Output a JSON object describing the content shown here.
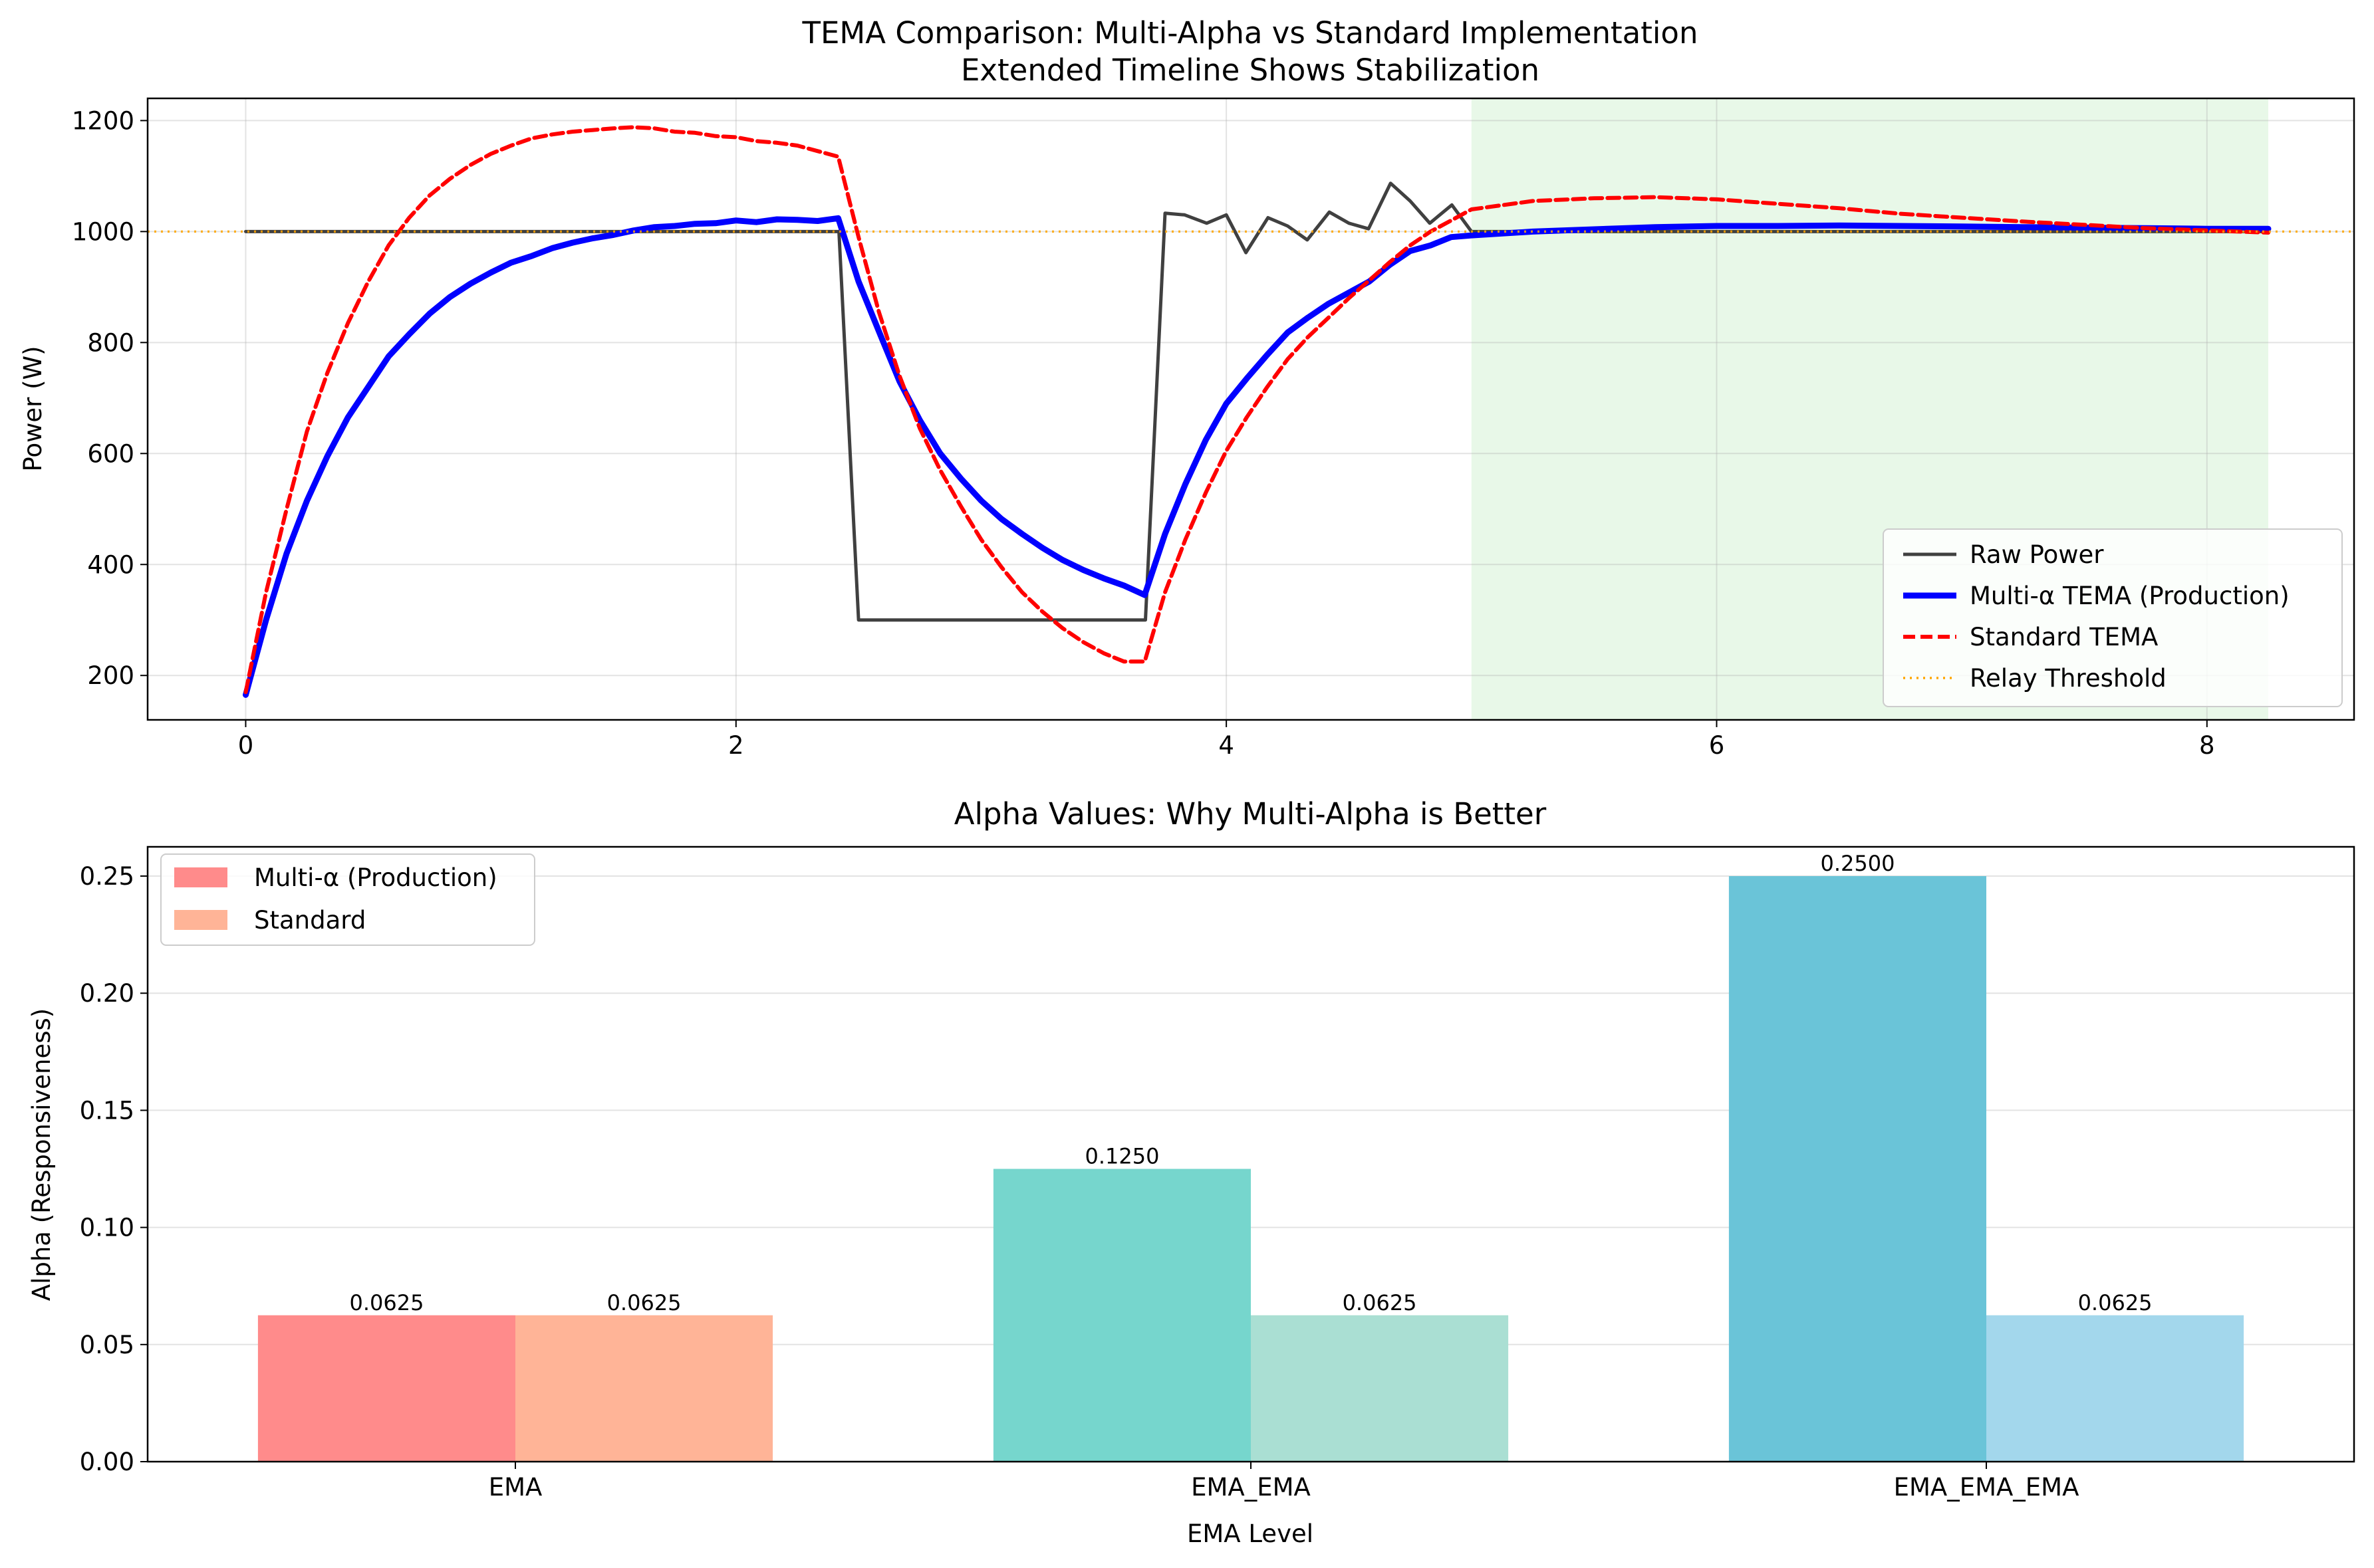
{
  "chart_data": [
    {
      "type": "line",
      "title": "TEMA Comparison: Multi-Alpha vs Standard Implementation",
      "subtitle": "Extended Timeline Shows Stabilization",
      "xlabel": "",
      "ylabel": "Power (W)",
      "xlim": [
        -0.4,
        8.6
      ],
      "ylim": [
        120,
        1240
      ],
      "xticks": [
        0,
        2,
        4,
        6,
        8
      ],
      "yticks": [
        200,
        400,
        600,
        800,
        1000,
        1200
      ],
      "grid": true,
      "legend_position": "lower-right",
      "shaded_region": {
        "x": [
          5.0,
          8.25
        ],
        "color": "#e8f8e8"
      },
      "threshold": {
        "name": "Relay Threshold",
        "y": 1000,
        "color": "#ffa500"
      },
      "series": [
        {
          "name": "Raw Power",
          "color": "#404040",
          "x": [
            0,
            2.42,
            2.5,
            3.67,
            3.75,
            3.83,
            3.92,
            4.0,
            4.08,
            4.17,
            4.25,
            4.33,
            4.42,
            4.5,
            4.58,
            4.67,
            4.75,
            4.83,
            4.92,
            5.0,
            8.25
          ],
          "y": [
            1000,
            1000,
            300,
            300,
            1033,
            1030,
            1015,
            1030,
            962,
            1025,
            1010,
            985,
            1035,
            1015,
            1005,
            1087,
            1055,
            1015,
            1048,
            1000,
            1000
          ]
        },
        {
          "name": "Multi-α TEMA (Production)",
          "color": "#0000ff",
          "x": [
            0,
            0.083,
            0.167,
            0.25,
            0.333,
            0.417,
            0.5,
            0.583,
            0.667,
            0.75,
            0.833,
            0.917,
            1.0,
            1.083,
            1.167,
            1.25,
            1.333,
            1.417,
            1.5,
            1.583,
            1.667,
            1.75,
            1.833,
            1.917,
            2.0,
            2.083,
            2.167,
            2.25,
            2.333,
            2.417,
            2.5,
            2.583,
            2.667,
            2.75,
            2.833,
            2.917,
            3.0,
            3.083,
            3.167,
            3.25,
            3.333,
            3.417,
            3.5,
            3.583,
            3.667,
            3.75,
            3.833,
            3.917,
            4.0,
            4.083,
            4.167,
            4.25,
            4.333,
            4.417,
            4.5,
            4.583,
            4.667,
            4.75,
            4.833,
            4.917,
            5.0,
            5.25,
            5.5,
            5.75,
            6.0,
            6.25,
            6.5,
            6.75,
            7.0,
            7.25,
            7.5,
            7.75,
            8.0,
            8.25
          ],
          "y": [
            165,
            300,
            420,
            515,
            595,
            665,
            720,
            775,
            815,
            852,
            882,
            906,
            926,
            944,
            956,
            970,
            980,
            988,
            994,
            1002,
            1008,
            1010,
            1014,
            1015,
            1020,
            1017,
            1022,
            1021,
            1019,
            1024,
            910,
            820,
            730,
            660,
            600,
            555,
            515,
            482,
            455,
            430,
            408,
            390,
            375,
            362,
            345,
            455,
            545,
            625,
            690,
            735,
            778,
            818,
            845,
            870,
            890,
            910,
            940,
            965,
            975,
            990,
            993,
            1000,
            1004,
            1008,
            1010,
            1010,
            1011,
            1010,
            1009,
            1008,
            1007,
            1006,
            1005,
            1005
          ]
        },
        {
          "name": "Standard TEMA",
          "color": "#ff0000",
          "x": [
            0,
            0.083,
            0.167,
            0.25,
            0.333,
            0.417,
            0.5,
            0.583,
            0.667,
            0.75,
            0.833,
            0.917,
            1.0,
            1.083,
            1.167,
            1.25,
            1.333,
            1.417,
            1.5,
            1.583,
            1.667,
            1.75,
            1.833,
            1.917,
            2.0,
            2.083,
            2.167,
            2.25,
            2.333,
            2.417,
            2.5,
            2.583,
            2.667,
            2.75,
            2.833,
            2.917,
            3.0,
            3.083,
            3.167,
            3.25,
            3.333,
            3.417,
            3.5,
            3.583,
            3.667,
            3.75,
            3.833,
            3.917,
            4.0,
            4.083,
            4.167,
            4.25,
            4.333,
            4.417,
            4.5,
            4.583,
            4.667,
            4.75,
            4.833,
            4.917,
            5.0,
            5.25,
            5.5,
            5.75,
            6.0,
            6.25,
            6.5,
            6.75,
            7.0,
            7.25,
            7.5,
            7.75,
            8.0,
            8.25
          ],
          "y": [
            170,
            350,
            500,
            640,
            745,
            835,
            910,
            975,
            1025,
            1065,
            1095,
            1120,
            1140,
            1155,
            1168,
            1175,
            1180,
            1183,
            1186,
            1188,
            1186,
            1180,
            1178,
            1172,
            1170,
            1163,
            1160,
            1155,
            1145,
            1135,
            990,
            855,
            740,
            645,
            570,
            505,
            445,
            395,
            350,
            315,
            285,
            260,
            240,
            225,
            225,
            350,
            445,
            530,
            605,
            665,
            720,
            770,
            810,
            845,
            880,
            912,
            945,
            975,
            1000,
            1020,
            1040,
            1055,
            1060,
            1062,
            1058,
            1050,
            1042,
            1032,
            1025,
            1018,
            1012,
            1006,
            1002,
            998
          ]
        }
      ]
    },
    {
      "type": "bar",
      "title": "Alpha Values: Why Multi-Alpha is Better",
      "xlabel": "EMA Level",
      "ylabel": "Alpha (Responsiveness)",
      "ylim": [
        0,
        0.2625
      ],
      "yticks": [
        "0.00",
        "0.05",
        "0.10",
        "0.15",
        "0.20",
        "0.25"
      ],
      "grid": true,
      "legend_position": "top-left",
      "categories": [
        "EMA",
        "EMA_EMA",
        "EMA_EMA_EMA"
      ],
      "series": [
        {
          "name": "Multi-α (Production)",
          "values": [
            0.0625,
            0.125,
            0.25
          ],
          "labels": [
            "0.0625",
            "0.1250",
            "0.2500"
          ],
          "colors": [
            "#ff8b8b",
            "#76d6cd",
            "#6ac4d8"
          ]
        },
        {
          "name": "Standard",
          "values": [
            0.0625,
            0.0625,
            0.0625
          ],
          "labels": [
            "0.0625",
            "0.0625",
            "0.0625"
          ],
          "colors": [
            "#ffb497",
            "#aadfd3",
            "#a3d7ec"
          ]
        }
      ]
    }
  ]
}
